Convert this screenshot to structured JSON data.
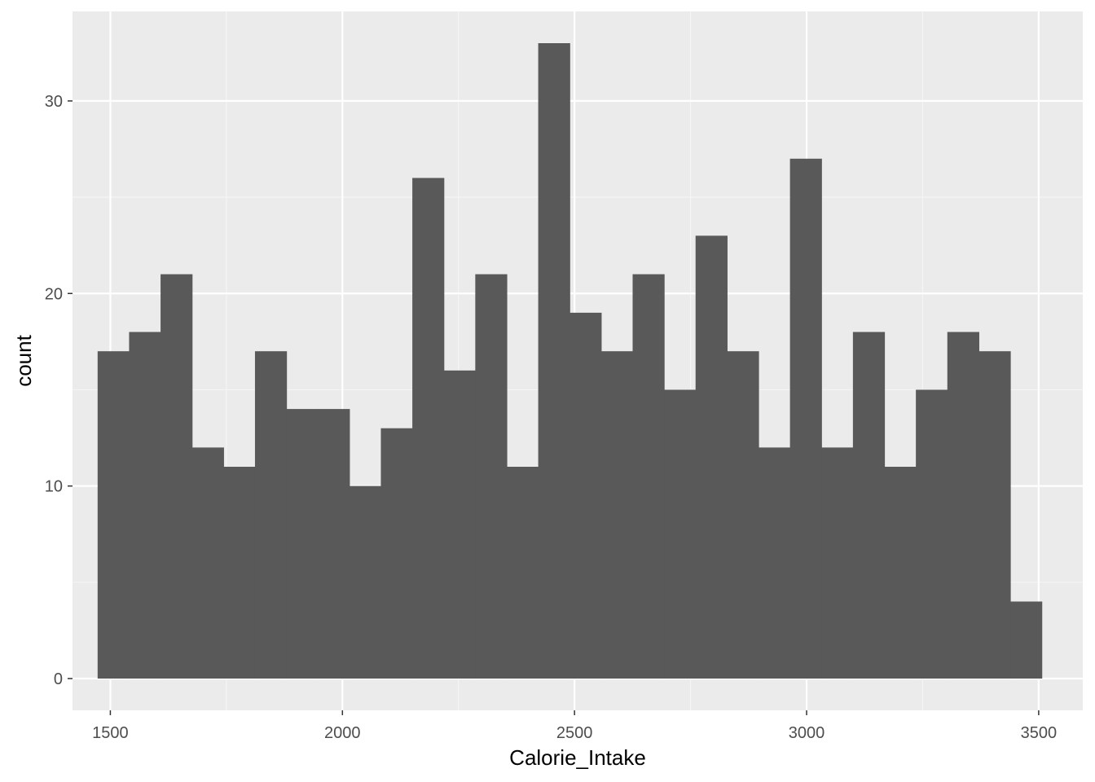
{
  "chart_data": {
    "type": "bar",
    "subtype": "histogram",
    "xlabel": "Calorie_Intake",
    "ylabel": "count",
    "bin_width": 67.8,
    "bins": [
      {
        "start": 1472.6,
        "count": 17
      },
      {
        "start": 1540.4,
        "count": 18
      },
      {
        "start": 1608.2,
        "count": 21
      },
      {
        "start": 1676.0,
        "count": 12
      },
      {
        "start": 1743.8,
        "count": 11
      },
      {
        "start": 1811.6,
        "count": 17
      },
      {
        "start": 1879.4,
        "count": 14
      },
      {
        "start": 1947.2,
        "count": 14
      },
      {
        "start": 2015.0,
        "count": 10
      },
      {
        "start": 2082.8,
        "count": 13
      },
      {
        "start": 2150.6,
        "count": 26
      },
      {
        "start": 2218.4,
        "count": 16
      },
      {
        "start": 2286.2,
        "count": 21
      },
      {
        "start": 2354.0,
        "count": 11
      },
      {
        "start": 2421.8,
        "count": 33
      },
      {
        "start": 2489.6,
        "count": 19
      },
      {
        "start": 2557.4,
        "count": 17
      },
      {
        "start": 2625.2,
        "count": 21
      },
      {
        "start": 2693.0,
        "count": 15
      },
      {
        "start": 2760.8,
        "count": 23
      },
      {
        "start": 2828.6,
        "count": 17
      },
      {
        "start": 2896.4,
        "count": 12
      },
      {
        "start": 2964.2,
        "count": 27
      },
      {
        "start": 3032.0,
        "count": 12
      },
      {
        "start": 3099.8,
        "count": 18
      },
      {
        "start": 3167.6,
        "count": 11
      },
      {
        "start": 3235.4,
        "count": 15
      },
      {
        "start": 3303.2,
        "count": 18
      },
      {
        "start": 3371.0,
        "count": 17
      },
      {
        "start": 3438.8,
        "count": 4
      }
    ],
    "xlim": [
      1418.5,
      3595
    ],
    "ylim": [
      -1.65,
      34.65
    ],
    "x_ticks": [
      1500,
      2000,
      2500,
      3000,
      3500
    ],
    "x_tick_labels": [
      "1500",
      "2000",
      "2500",
      "3000",
      "3500"
    ],
    "y_ticks": [
      0,
      10,
      20,
      30
    ],
    "y_tick_labels": [
      "0",
      "10",
      "20",
      "30"
    ],
    "grid": true,
    "colors": {
      "panel_background": "#ebebeb",
      "grid_major": "#ffffff",
      "grid_minor": "#f5f5f5",
      "bar_fill": "#595959",
      "tick_label": "#4d4d4d",
      "tick_mark": "#333333",
      "axis_title": "#000000"
    }
  }
}
